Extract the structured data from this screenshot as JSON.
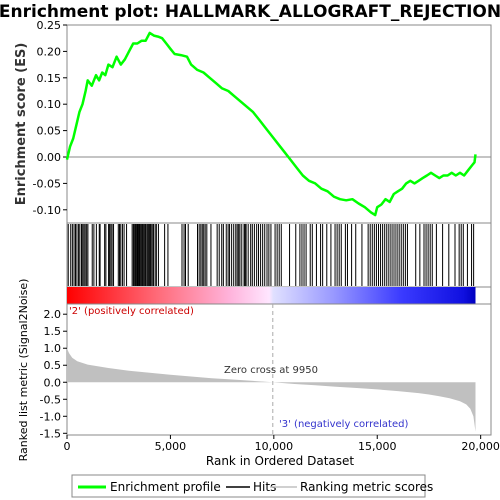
{
  "chart_data": {
    "type": "line",
    "title": "Enrichment plot: HALLMARK_ALLOGRAFT_REJECTION",
    "top_panel": {
      "ylabel": "Enrichment score (ES)",
      "ylim": [
        -0.125,
        0.25
      ],
      "yticks": [
        "0.25",
        "0.20",
        "0.15",
        "0.10",
        "0.05",
        "0.00",
        "-0.05",
        "-0.10"
      ],
      "ytick_values": [
        0.25,
        0.2,
        0.15,
        0.1,
        0.05,
        0.0,
        -0.05,
        -0.1
      ],
      "series": [
        {
          "name": "Enrichment profile",
          "color": "#00ff00",
          "x": [
            0,
            150,
            300,
            450,
            600,
            750,
            900,
            1000,
            1200,
            1400,
            1550,
            1700,
            1850,
            2000,
            2200,
            2400,
            2600,
            2800,
            3000,
            3200,
            3400,
            3600,
            3800,
            4000,
            4200,
            4400,
            4600,
            4800,
            5000,
            5200,
            5500,
            5800,
            6000,
            6300,
            6600,
            6900,
            7200,
            7500,
            7800,
            8100,
            8400,
            8700,
            9000,
            9300,
            9600,
            9900,
            10200,
            10500,
            10800,
            11100,
            11400,
            11700,
            12000,
            12300,
            12600,
            12900,
            13200,
            13500,
            13800,
            14100,
            14400,
            14700,
            14900,
            15000,
            15200,
            15400,
            15600,
            15800,
            16000,
            16200,
            16400,
            16600,
            16800,
            17000,
            17200,
            17400,
            17600,
            17800,
            18000,
            18200,
            18400,
            18600,
            18800,
            19000,
            19200,
            19400,
            19600,
            19700,
            19750
          ],
          "y": [
            -0.005,
            0.02,
            0.035,
            0.06,
            0.085,
            0.1,
            0.125,
            0.145,
            0.135,
            0.155,
            0.145,
            0.16,
            0.155,
            0.175,
            0.17,
            0.19,
            0.175,
            0.185,
            0.2,
            0.215,
            0.215,
            0.22,
            0.22,
            0.235,
            0.23,
            0.228,
            0.225,
            0.215,
            0.205,
            0.195,
            0.193,
            0.19,
            0.175,
            0.165,
            0.16,
            0.15,
            0.14,
            0.13,
            0.125,
            0.115,
            0.105,
            0.095,
            0.085,
            0.07,
            0.055,
            0.04,
            0.025,
            0.01,
            -0.005,
            -0.02,
            -0.035,
            -0.045,
            -0.05,
            -0.06,
            -0.065,
            -0.075,
            -0.08,
            -0.082,
            -0.08,
            -0.088,
            -0.095,
            -0.105,
            -0.11,
            -0.095,
            -0.09,
            -0.08,
            -0.085,
            -0.07,
            -0.065,
            -0.06,
            -0.05,
            -0.045,
            -0.05,
            -0.045,
            -0.04,
            -0.035,
            -0.03,
            -0.035,
            -0.04,
            -0.035,
            -0.035,
            -0.03,
            -0.035,
            -0.03,
            -0.035,
            -0.025,
            -0.015,
            -0.01,
            0.005
          ]
        }
      ]
    },
    "hits_panel": {
      "series_name": "Hits",
      "hit_positions": [
        60,
        180,
        260,
        340,
        410,
        480,
        560,
        620,
        700,
        760,
        820,
        880,
        950,
        1010,
        1220,
        1300,
        1420,
        1560,
        1600,
        1820,
        1880,
        2010,
        2060,
        2120,
        2180,
        2250,
        2480,
        2540,
        2600,
        2680,
        2760,
        2880,
        3150,
        3210,
        3250,
        3300,
        3340,
        3390,
        3430,
        3480,
        3520,
        3570,
        3620,
        3660,
        3710,
        3760,
        3800,
        3860,
        3910,
        3960,
        4010,
        4060,
        4120,
        4180,
        4260,
        4320,
        4420,
        4720,
        4880,
        5560,
        5660,
        5730,
        5860,
        6310,
        6390,
        6470,
        6540,
        6610,
        6680,
        6760,
        6960,
        7260,
        7360,
        7480,
        7560,
        7700,
        7790,
        7860,
        7960,
        8060,
        8160,
        8230,
        8300,
        8360,
        8450,
        8560,
        8610,
        8660,
        8760,
        8880,
        8960,
        9060,
        9170,
        9260,
        9360,
        9460,
        9560,
        9670,
        9760,
        9860,
        10060,
        10160,
        10260,
        10360,
        10760,
        11060,
        11260,
        11360,
        11460,
        11560,
        11760,
        11860,
        12060,
        12260,
        12360,
        12560,
        12760,
        12960,
        13060,
        13160,
        13260,
        13460,
        13560,
        13760,
        13960,
        14260,
        14560,
        14660,
        14760,
        14860,
        14960,
        15060,
        15160,
        15260,
        15360,
        15460,
        15560,
        15660,
        15760,
        15860,
        15960,
        16060,
        16160,
        16260,
        16360,
        16460,
        16860,
        17060,
        17260,
        17360,
        17460,
        17560,
        17660,
        17860,
        18160,
        18460,
        18760,
        18960,
        19060,
        19160,
        19360,
        19560,
        19660
      ]
    },
    "bottom_panel": {
      "ylabel": "Ranked list metric (Signal2Noise)",
      "ylim": [
        -1.55,
        2.3
      ],
      "yticks": [
        "2.0",
        "1.5",
        "1.0",
        "0.5",
        "0.0",
        "-0.5",
        "-1.0",
        "-1.5"
      ],
      "ytick_values": [
        2.0,
        1.5,
        1.0,
        0.5,
        0.0,
        -0.5,
        -1.0,
        -1.5
      ],
      "series_name": "Ranking metric scores",
      "color": "#c0c0c0",
      "x": [
        0,
        30,
        100,
        250,
        500,
        1000,
        2000,
        3000,
        4000,
        5000,
        6000,
        7000,
        8000,
        9000,
        9950,
        11000,
        12000,
        13000,
        14000,
        15000,
        16000,
        17000,
        17500,
        18000,
        18500,
        19000,
        19300,
        19500,
        19650,
        19750
      ],
      "y": [
        1.05,
        0.95,
        0.85,
        0.72,
        0.62,
        0.52,
        0.42,
        0.34,
        0.28,
        0.22,
        0.17,
        0.12,
        0.08,
        0.04,
        0.0,
        -0.05,
        -0.09,
        -0.13,
        -0.17,
        -0.21,
        -0.26,
        -0.32,
        -0.36,
        -0.41,
        -0.47,
        -0.56,
        -0.65,
        -0.78,
        -1.0,
        -1.45
      ]
    },
    "xlabel": "Rank in Ordered Dataset",
    "xlim": [
      0,
      20500
    ],
    "xticks": [
      "0",
      "5,000",
      "10,000",
      "15,000",
      "20,000"
    ],
    "xtick_values": [
      0,
      5000,
      10000,
      15000,
      20000
    ],
    "zero_cross": 9950,
    "zero_cross_label": "Zero cross at 9950",
    "pos_label": "'2' (positively correlated)",
    "neg_label": "'3' (negatively correlated)",
    "legend": {
      "placement": "bottom",
      "entries": [
        "Enrichment profile",
        "Hits",
        "Ranking metric scores"
      ]
    }
  }
}
